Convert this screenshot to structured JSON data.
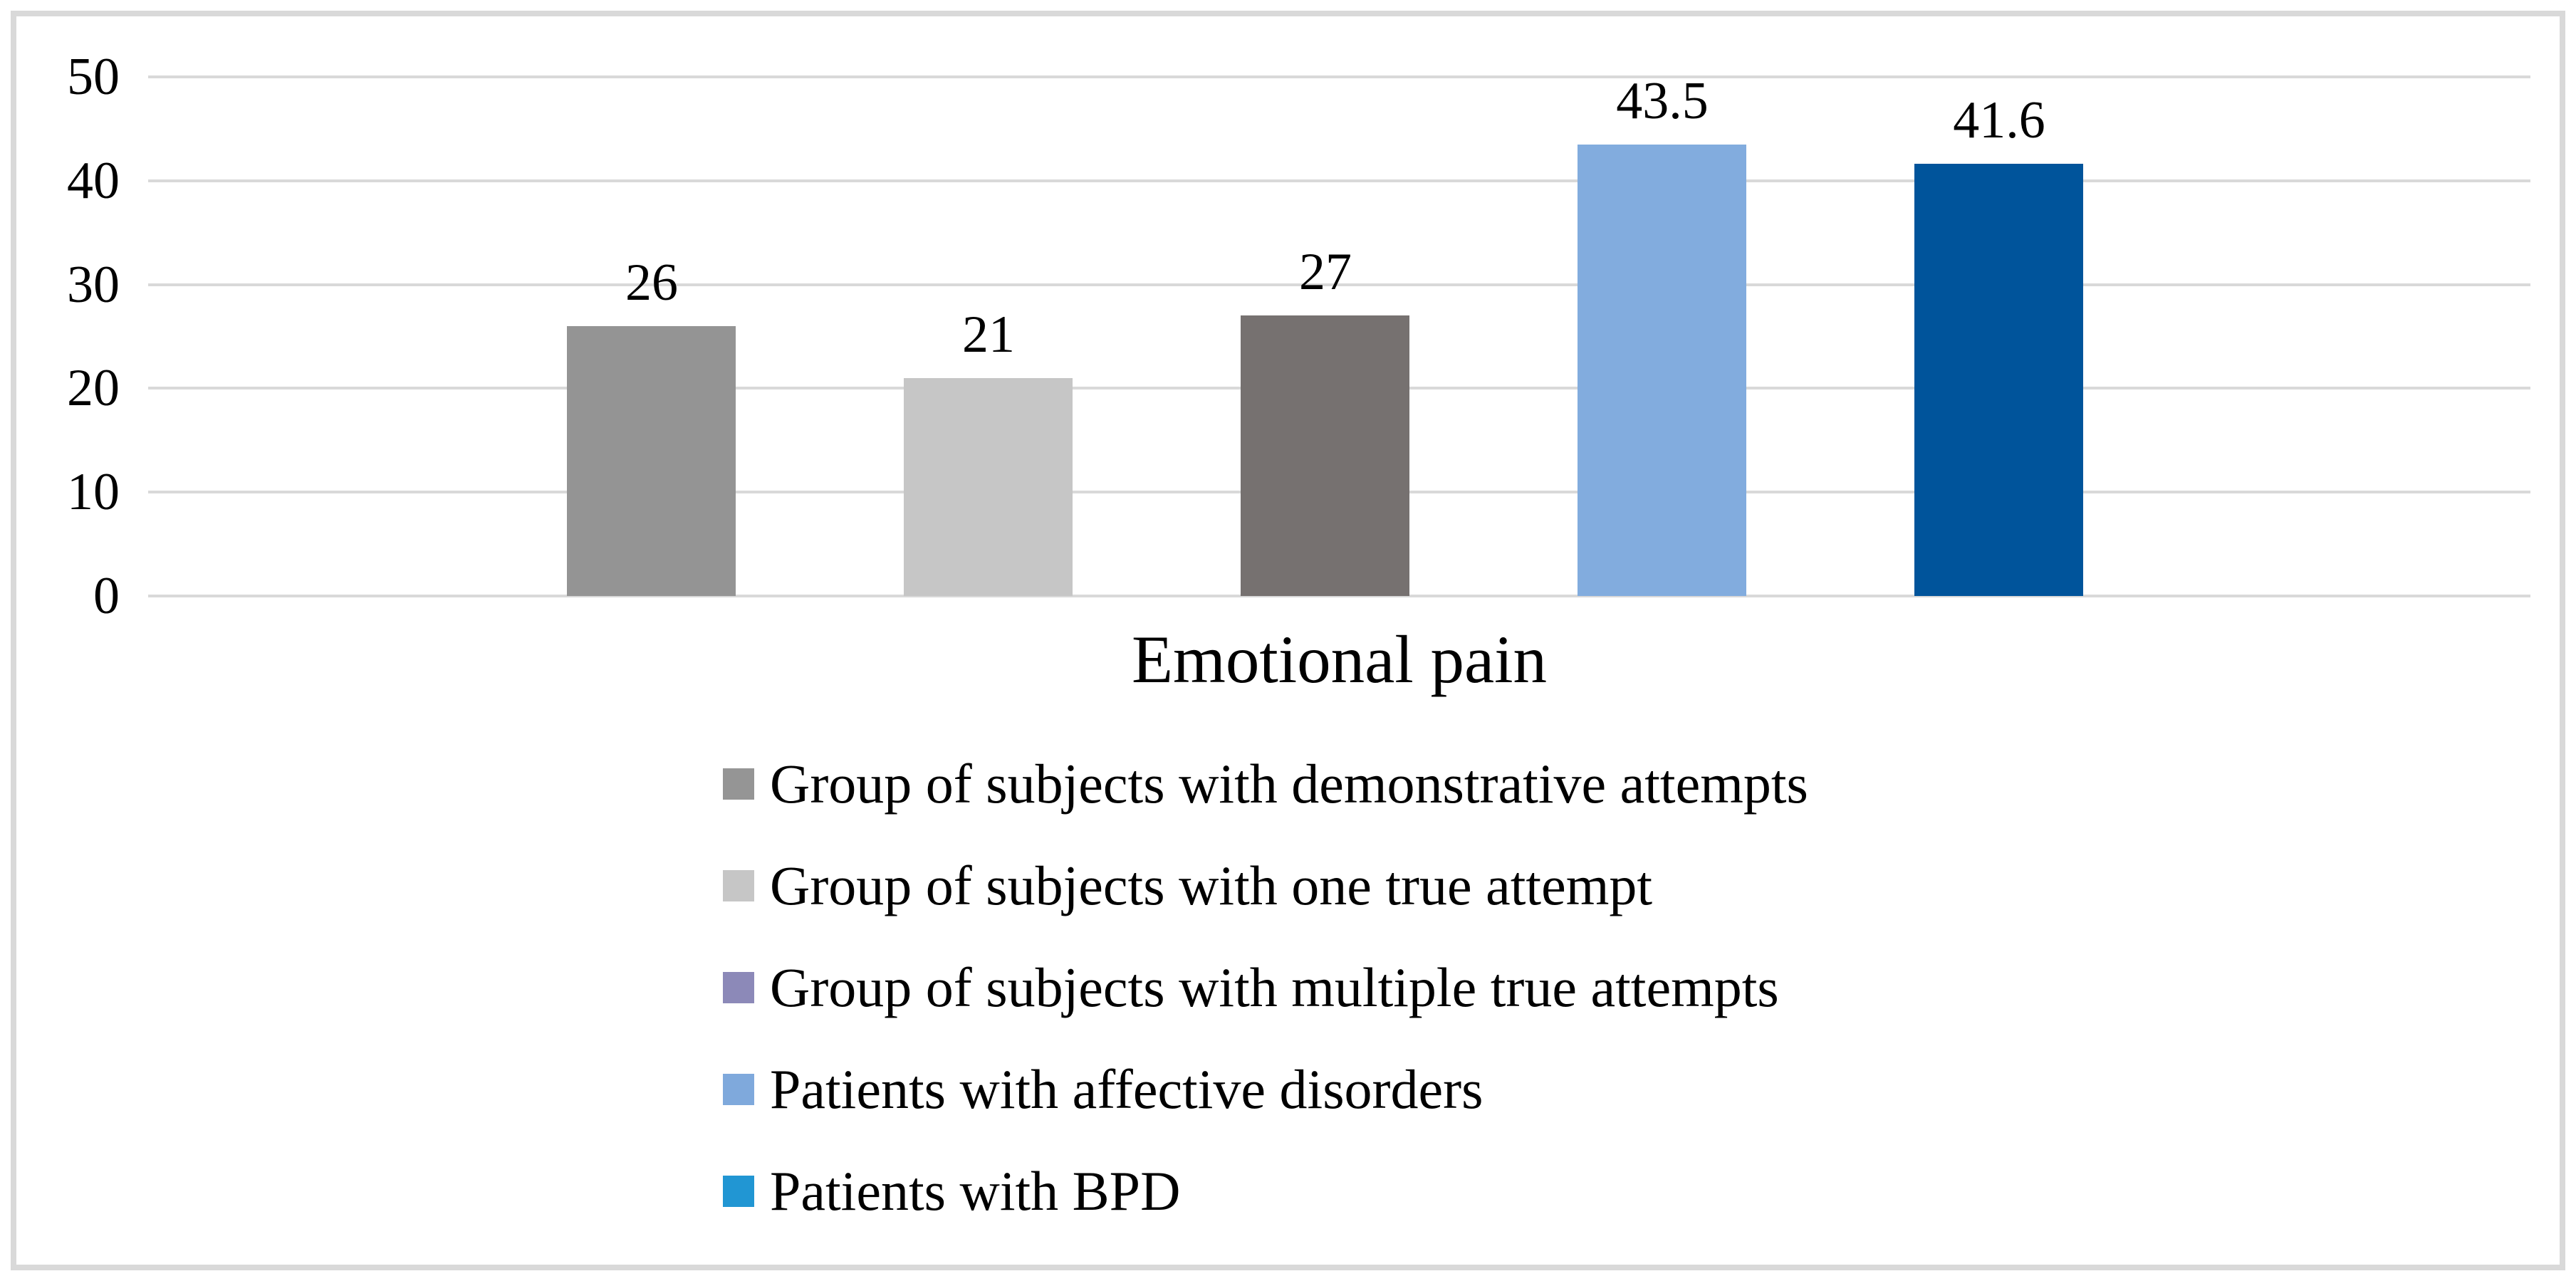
{
  "chart_data": {
    "type": "bar",
    "title": "",
    "xlabel": "Emotional pain",
    "categories": [
      "Emotional pain"
    ],
    "series": [
      {
        "name": "Group of subjects with demonstrative attempts",
        "value": 26,
        "label": "26",
        "bar_color": "#949494",
        "legend_color": "#959595"
      },
      {
        "name": "Group of subjects with one true attempt",
        "value": 21,
        "label": "21",
        "bar_color": "#c6c6c6",
        "legend_color": "#c6c6c6"
      },
      {
        "name": "Group of subjects with multiple true attempts",
        "value": 27,
        "label": "27",
        "bar_color": "#767170",
        "legend_color": "#8c89b8"
      },
      {
        "name": "Patients with affective disorders",
        "value": 43.5,
        "label": "43.5",
        "bar_color": "#82acde",
        "legend_color": "#7fa9dc"
      },
      {
        "name": "Patients with BPD",
        "value": 41.6,
        "label": "41.6",
        "bar_color": "#00549b",
        "legend_color": "#2196d3"
      }
    ],
    "y_axis": {
      "min": 0,
      "max": 50,
      "ticks": [
        0,
        10,
        20,
        30,
        40,
        50
      ]
    },
    "grid": true,
    "legend_position": "bottom"
  },
  "colors": {
    "background": "#ffffff",
    "border": "#d9d9d9",
    "gridline": "#d9d9d9",
    "text": "#000000"
  }
}
